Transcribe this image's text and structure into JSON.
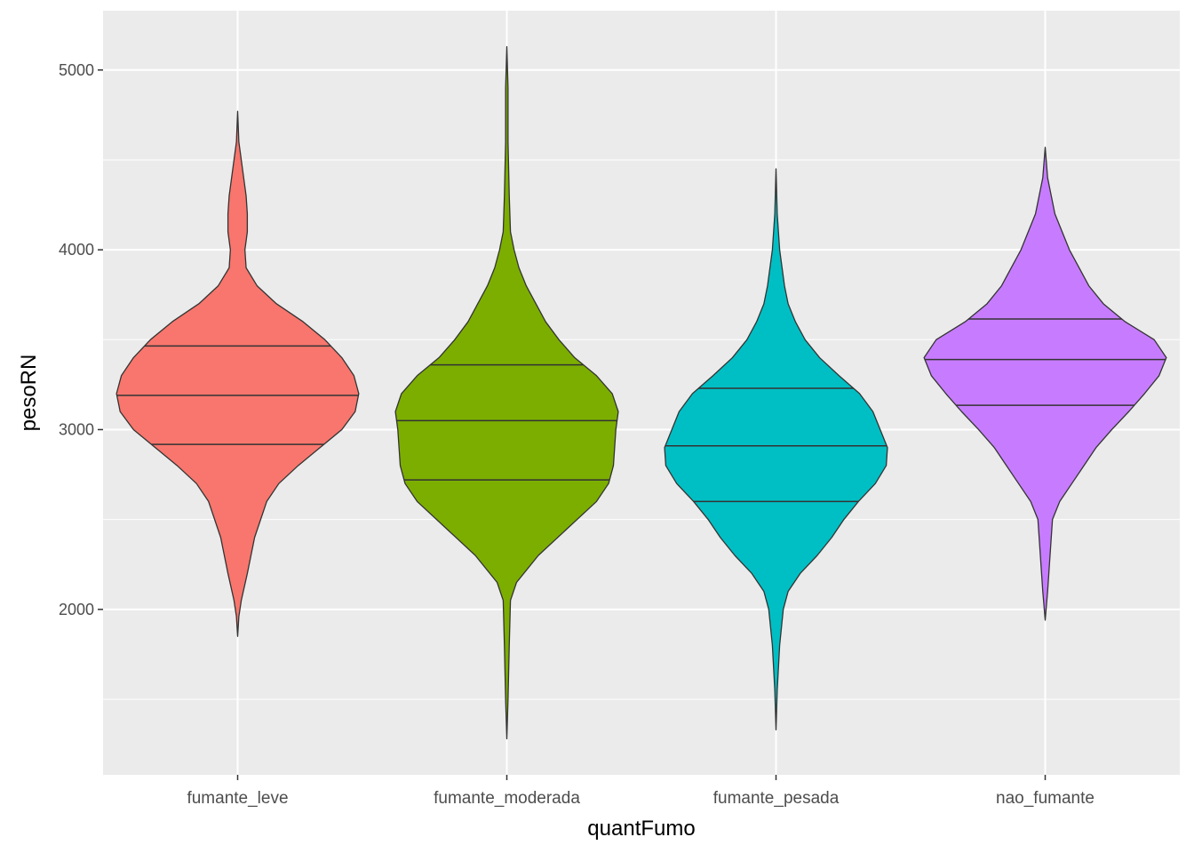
{
  "chart_data": {
    "type": "violin",
    "title": "",
    "xlabel": "quantFumo",
    "ylabel": "pesoRN",
    "ylim": [
      1080,
      5330
    ],
    "yticks": [
      2000,
      3000,
      4000,
      5000
    ],
    "y_minor_ticks": [
      1500,
      2500,
      3500,
      4500
    ],
    "grid": true,
    "legend": "none",
    "panel_background": "#ebebeb",
    "grid_color": "#ffffff",
    "outline_color": "#333333",
    "categories": [
      "fumante_leve",
      "fumante_moderada",
      "fumante_pesada",
      "nao_fumante"
    ],
    "series": [
      {
        "category": "fumante_leve",
        "color": "#f8766d",
        "min": 1850,
        "max": 4770,
        "quantiles": [
          2918,
          3190,
          3465
        ],
        "density": [
          [
            1850,
            0.0
          ],
          [
            1960,
            0.01
          ],
          [
            2050,
            0.03
          ],
          [
            2200,
            0.08
          ],
          [
            2400,
            0.14
          ],
          [
            2600,
            0.24
          ],
          [
            2700,
            0.34
          ],
          [
            2800,
            0.5
          ],
          [
            2900,
            0.68
          ],
          [
            3000,
            0.86
          ],
          [
            3100,
            0.97
          ],
          [
            3200,
            1.0
          ],
          [
            3300,
            0.96
          ],
          [
            3400,
            0.86
          ],
          [
            3500,
            0.72
          ],
          [
            3600,
            0.54
          ],
          [
            3700,
            0.32
          ],
          [
            3800,
            0.16
          ],
          [
            3900,
            0.07
          ],
          [
            4000,
            0.06
          ],
          [
            4100,
            0.08
          ],
          [
            4200,
            0.08
          ],
          [
            4300,
            0.07
          ],
          [
            4400,
            0.05
          ],
          [
            4500,
            0.03
          ],
          [
            4600,
            0.01
          ],
          [
            4770,
            0.0
          ]
        ]
      },
      {
        "category": "fumante_moderada",
        "color": "#7cae00",
        "min": 1280,
        "max": 5130,
        "quantiles": [
          2720,
          3050,
          3360
        ],
        "density": [
          [
            1280,
            0.0
          ],
          [
            1500,
            0.01
          ],
          [
            1800,
            0.02
          ],
          [
            2050,
            0.03
          ],
          [
            2150,
            0.08
          ],
          [
            2300,
            0.26
          ],
          [
            2450,
            0.5
          ],
          [
            2600,
            0.74
          ],
          [
            2700,
            0.84
          ],
          [
            2800,
            0.88
          ],
          [
            2900,
            0.89
          ],
          [
            3000,
            0.9
          ],
          [
            3100,
            0.92
          ],
          [
            3200,
            0.87
          ],
          [
            3300,
            0.74
          ],
          [
            3400,
            0.56
          ],
          [
            3500,
            0.43
          ],
          [
            3600,
            0.32
          ],
          [
            3700,
            0.24
          ],
          [
            3800,
            0.16
          ],
          [
            3900,
            0.1
          ],
          [
            4000,
            0.06
          ],
          [
            4100,
            0.03
          ],
          [
            4300,
            0.02
          ],
          [
            4600,
            0.01
          ],
          [
            4900,
            0.01
          ],
          [
            5130,
            0.0
          ]
        ]
      },
      {
        "category": "fumante_pesada",
        "color": "#00bfc4",
        "min": 1330,
        "max": 4450,
        "quantiles": [
          2600,
          2910,
          3230
        ],
        "density": [
          [
            1330,
            0.0
          ],
          [
            1550,
            0.01
          ],
          [
            1800,
            0.03
          ],
          [
            2000,
            0.06
          ],
          [
            2100,
            0.1
          ],
          [
            2200,
            0.2
          ],
          [
            2300,
            0.34
          ],
          [
            2400,
            0.46
          ],
          [
            2500,
            0.56
          ],
          [
            2600,
            0.68
          ],
          [
            2700,
            0.82
          ],
          [
            2800,
            0.91
          ],
          [
            2900,
            0.92
          ],
          [
            3000,
            0.86
          ],
          [
            3100,
            0.8
          ],
          [
            3200,
            0.69
          ],
          [
            3300,
            0.52
          ],
          [
            3400,
            0.36
          ],
          [
            3500,
            0.24
          ],
          [
            3600,
            0.16
          ],
          [
            3700,
            0.1
          ],
          [
            3800,
            0.07
          ],
          [
            3900,
            0.05
          ],
          [
            4000,
            0.03
          ],
          [
            4200,
            0.01
          ],
          [
            4450,
            0.0
          ]
        ]
      },
      {
        "category": "nao_fumante",
        "color": "#c77cff",
        "min": 1940,
        "max": 4570,
        "quantiles": [
          3135,
          3390,
          3615
        ],
        "density": [
          [
            1940,
            0.0
          ],
          [
            2100,
            0.02
          ],
          [
            2300,
            0.04
          ],
          [
            2500,
            0.06
          ],
          [
            2600,
            0.12
          ],
          [
            2700,
            0.22
          ],
          [
            2800,
            0.32
          ],
          [
            2900,
            0.42
          ],
          [
            3000,
            0.55
          ],
          [
            3100,
            0.69
          ],
          [
            3200,
            0.82
          ],
          [
            3300,
            0.94
          ],
          [
            3400,
            1.0
          ],
          [
            3500,
            0.9
          ],
          [
            3600,
            0.66
          ],
          [
            3700,
            0.48
          ],
          [
            3800,
            0.36
          ],
          [
            3900,
            0.28
          ],
          [
            4000,
            0.2
          ],
          [
            4100,
            0.14
          ],
          [
            4200,
            0.08
          ],
          [
            4300,
            0.05
          ],
          [
            4400,
            0.02
          ],
          [
            4570,
            0.0
          ]
        ]
      }
    ]
  }
}
